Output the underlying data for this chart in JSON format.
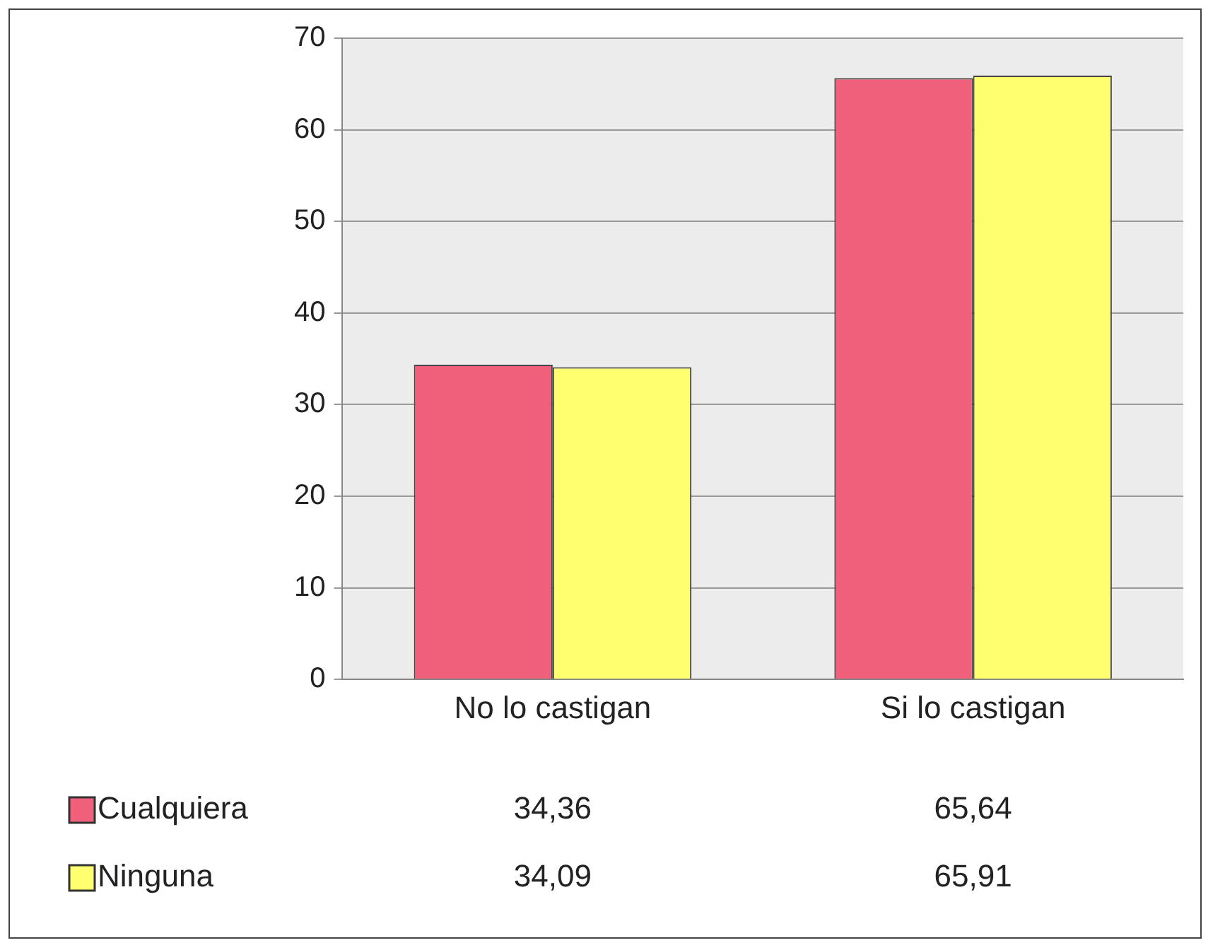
{
  "chart_data": {
    "type": "bar",
    "categories": [
      "No lo castigan",
      "Si lo castigan"
    ],
    "series": [
      {
        "name": "Cualquiera",
        "color": "#f0607a",
        "values": [
          34.36,
          65.64
        ],
        "value_labels": [
          "34,36",
          "65,64"
        ]
      },
      {
        "name": "Ninguna",
        "color": "#ffff70",
        "values": [
          34.09,
          65.91
        ],
        "value_labels": [
          "34,09",
          "65,91"
        ]
      }
    ],
    "ylim": [
      0,
      70
    ],
    "yticks": [
      0,
      10,
      20,
      30,
      40,
      50,
      60,
      70
    ],
    "grid": "y",
    "legend": "bottom left"
  }
}
